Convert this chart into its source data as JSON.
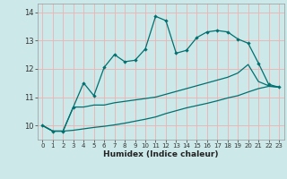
{
  "xlabel": "Humidex (Indice chaleur)",
  "ylabel": "",
  "bg_color": "#cce8e8",
  "grid_color": "#e8b8b8",
  "line_color": "#007070",
  "xlim": [
    -0.5,
    23.5
  ],
  "ylim": [
    9.5,
    14.3
  ],
  "xticks": [
    0,
    1,
    2,
    3,
    4,
    5,
    6,
    7,
    8,
    9,
    10,
    11,
    12,
    13,
    14,
    15,
    16,
    17,
    18,
    19,
    20,
    21,
    22,
    23
  ],
  "yticks": [
    10,
    11,
    12,
    13,
    14
  ],
  "line1_x": [
    0,
    1,
    2,
    3,
    4,
    5,
    6,
    7,
    8,
    9,
    10,
    11,
    12,
    13,
    14,
    15,
    16,
    17,
    18,
    19,
    20,
    21,
    22,
    23
  ],
  "line1_y": [
    10.0,
    9.8,
    9.8,
    10.65,
    11.5,
    11.05,
    12.05,
    12.5,
    12.25,
    12.3,
    12.7,
    13.85,
    13.7,
    12.55,
    12.65,
    13.1,
    13.3,
    13.35,
    13.3,
    13.05,
    12.9,
    12.2,
    11.45,
    11.35
  ],
  "line2_x": [
    0,
    1,
    2,
    3,
    4,
    5,
    6,
    7,
    8,
    9,
    10,
    11,
    12,
    13,
    14,
    15,
    16,
    17,
    18,
    19,
    20,
    21,
    22,
    23
  ],
  "line2_y": [
    10.0,
    9.8,
    9.8,
    10.65,
    10.65,
    10.72,
    10.72,
    10.8,
    10.85,
    10.9,
    10.95,
    11.0,
    11.1,
    11.2,
    11.3,
    11.4,
    11.5,
    11.6,
    11.7,
    11.85,
    12.15,
    11.55,
    11.4,
    11.35
  ],
  "line3_x": [
    0,
    1,
    2,
    3,
    4,
    5,
    6,
    7,
    8,
    9,
    10,
    11,
    12,
    13,
    14,
    15,
    16,
    17,
    18,
    19,
    20,
    21,
    22,
    23
  ],
  "line3_y": [
    10.0,
    9.8,
    9.8,
    9.83,
    9.88,
    9.93,
    9.97,
    10.02,
    10.08,
    10.15,
    10.22,
    10.3,
    10.42,
    10.52,
    10.62,
    10.7,
    10.78,
    10.87,
    10.97,
    11.05,
    11.18,
    11.3,
    11.38,
    11.35
  ]
}
